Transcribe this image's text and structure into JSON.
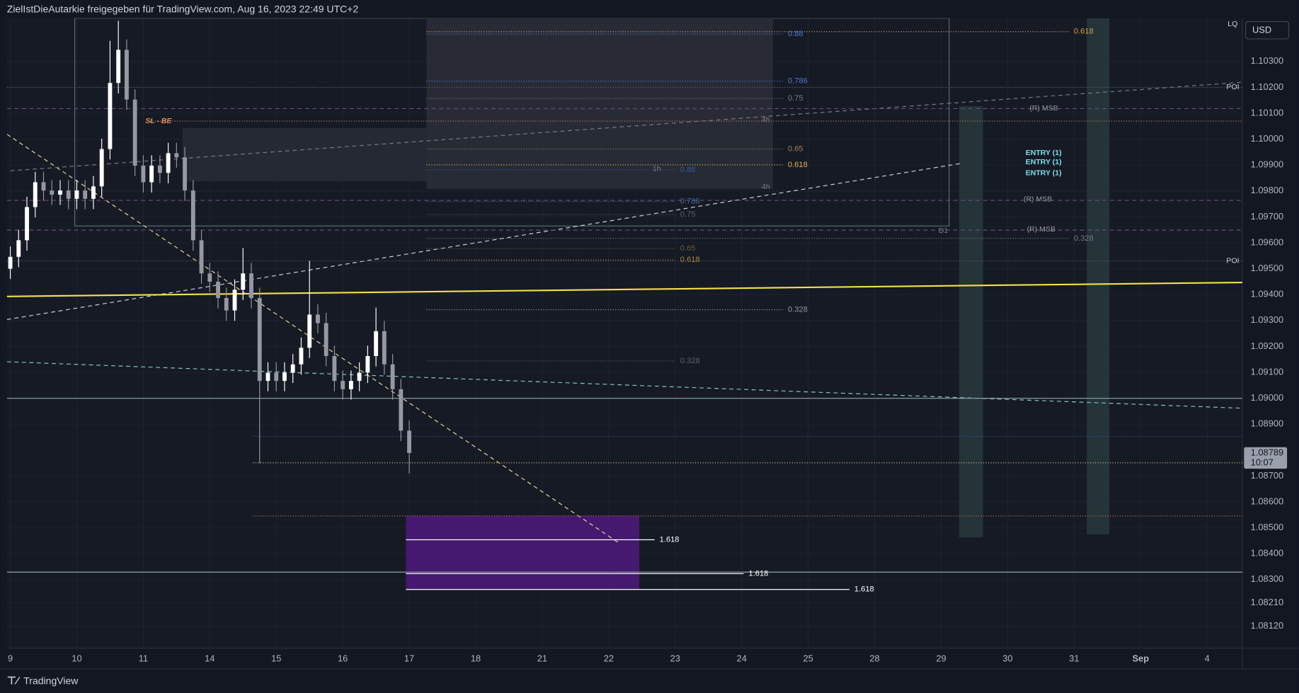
{
  "chart_data": {
    "type": "candlestick",
    "header": "ZielIstDieAutarkie freigegeben für TradingView.com, Aug 16, 2023 22:49 UTC+2",
    "currency": "USD",
    "brand": "TradingView",
    "last_price": 1.08789,
    "countdown": "10:07",
    "up_color": "#ffffff",
    "down_color": "#9598a1",
    "grid": true,
    "xlim": [
      -0.05,
      18.53
    ],
    "ylim": [
      1.08035,
      1.10467
    ],
    "xticks": [
      {
        "value": 0,
        "label": "9"
      },
      {
        "value": 1,
        "label": "10"
      },
      {
        "value": 2,
        "label": "11"
      },
      {
        "value": 3,
        "label": "14"
      },
      {
        "value": 4,
        "label": "15"
      },
      {
        "value": 5,
        "label": "16"
      },
      {
        "value": 6,
        "label": "17"
      },
      {
        "value": 7,
        "label": "18"
      },
      {
        "value": 8,
        "label": "21"
      },
      {
        "value": 9,
        "label": "22"
      },
      {
        "value": 10,
        "label": "23"
      },
      {
        "value": 11,
        "label": "24"
      },
      {
        "value": 12,
        "label": "25"
      },
      {
        "value": 13,
        "label": "28"
      },
      {
        "value": 14,
        "label": "29"
      },
      {
        "value": 15,
        "label": "30"
      },
      {
        "value": 16,
        "label": "31"
      },
      {
        "value": 17,
        "label": "Sep"
      },
      {
        "value": 18,
        "label": "4"
      }
    ],
    "yticks": [
      {
        "value": 1.0812,
        "label": "1.08120"
      },
      {
        "value": 1.0821,
        "label": "1.08210"
      },
      {
        "value": 1.083,
        "label": "1.08300"
      },
      {
        "value": 1.084,
        "label": "1.08400"
      },
      {
        "value": 1.085,
        "label": "1.08500"
      },
      {
        "value": 1.086,
        "label": "1.08600"
      },
      {
        "value": 1.087,
        "label": "1.08700"
      },
      {
        "value": 1.089,
        "label": "1.08900"
      },
      {
        "value": 1.09,
        "label": "1.09000"
      },
      {
        "value": 1.091,
        "label": "1.09100"
      },
      {
        "value": 1.092,
        "label": "1.09200"
      },
      {
        "value": 1.093,
        "label": "1.09300"
      },
      {
        "value": 1.094,
        "label": "1.09400"
      },
      {
        "value": 1.095,
        "label": "1.09500"
      },
      {
        "value": 1.096,
        "label": "1.09600"
      },
      {
        "value": 1.097,
        "label": "1.09700"
      },
      {
        "value": 1.098,
        "label": "1.09800"
      },
      {
        "value": 1.099,
        "label": "1.09900"
      },
      {
        "value": 1.1,
        "label": "1.10000"
      },
      {
        "value": 1.101,
        "label": "1.10100"
      },
      {
        "value": 1.102,
        "label": "1.10200"
      },
      {
        "value": 1.103,
        "label": "1.10300"
      }
    ],
    "x": [
      0,
      0.125,
      0.25,
      0.375,
      0.5,
      0.625,
      0.75,
      0.875,
      1,
      1.125,
      1.25,
      1.375,
      1.5,
      1.625,
      1.75,
      1.875,
      2,
      2.125,
      2.25,
      2.375,
      2.5,
      2.625,
      2.75,
      2.875,
      3,
      3.125,
      3.25,
      3.375,
      3.5,
      3.625,
      3.75,
      3.875,
      4,
      4.125,
      4.25,
      4.375,
      4.5,
      4.625,
      4.75,
      4.875,
      5,
      5.125,
      5.25,
      5.375,
      5.5,
      5.625,
      5.75,
      5.875,
      6
    ],
    "open": [
      1.095,
      1.09546,
      1.0961,
      1.09738,
      1.09834,
      1.09802,
      1.09786,
      1.09802,
      1.0977,
      1.09802,
      1.0977,
      1.09818,
      1.09962,
      1.10217,
      1.10345,
      1.10153,
      1.09898,
      1.09834,
      1.09898,
      1.0987,
      1.09946,
      1.0993,
      1.09802,
      1.0961,
      1.09482,
      1.0945,
      1.09387,
      1.09339,
      1.09419,
      1.09482,
      1.09387,
      1.09067,
      1.09099,
      1.09067,
      1.09099,
      1.09131,
      1.09195,
      1.09323,
      1.0929,
      1.09163,
      1.09067,
      1.09035,
      1.09067,
      1.09099,
      1.09163,
      1.09259,
      1.09131,
      1.09035,
      1.08875
    ],
    "high": [
      1.09586,
      1.0965,
      1.09778,
      1.09874,
      1.09874,
      1.09842,
      1.09842,
      1.09842,
      1.09842,
      1.09842,
      1.09858,
      1.10002,
      1.1038,
      1.10457,
      1.10385,
      1.10193,
      1.09938,
      1.09938,
      1.09938,
      1.09986,
      1.09986,
      1.0997,
      1.09842,
      1.0965,
      1.09522,
      1.0949,
      1.09427,
      1.09459,
      1.0958,
      1.09522,
      1.09427,
      1.09139,
      1.09139,
      1.09139,
      1.09171,
      1.09235,
      1.0953,
      1.09363,
      1.0933,
      1.09203,
      1.09107,
      1.09107,
      1.09139,
      1.09203,
      1.0935,
      1.09299,
      1.09171,
      1.09075,
      1.08915
    ],
    "low": [
      1.0946,
      1.09506,
      1.0957,
      1.09698,
      1.09762,
      1.09746,
      1.09746,
      1.0973,
      1.0973,
      1.0973,
      1.0973,
      1.09778,
      1.09922,
      1.10177,
      1.10113,
      1.09858,
      1.09794,
      1.09794,
      1.0983,
      1.0983,
      1.0989,
      1.09762,
      1.0957,
      1.09442,
      1.0941,
      1.09347,
      1.09299,
      1.09299,
      1.09379,
      1.09347,
      1.0875,
      1.09027,
      1.09027,
      1.09027,
      1.09059,
      1.09091,
      1.09155,
      1.0925,
      1.09123,
      1.09027,
      1.08995,
      1.08995,
      1.09027,
      1.09059,
      1.09123,
      1.09091,
      1.08995,
      1.08835,
      1.0871
    ],
    "close": [
      1.09546,
      1.0961,
      1.09738,
      1.09834,
      1.09802,
      1.09786,
      1.09802,
      1.0977,
      1.09802,
      1.0977,
      1.09818,
      1.09962,
      1.10217,
      1.10345,
      1.10153,
      1.09898,
      1.09834,
      1.09898,
      1.0987,
      1.09946,
      1.0993,
      1.09802,
      1.0961,
      1.09482,
      1.0945,
      1.09387,
      1.09339,
      1.09419,
      1.09482,
      1.09387,
      1.09067,
      1.09099,
      1.09067,
      1.09099,
      1.09131,
      1.09195,
      1.09323,
      1.0929,
      1.09163,
      1.09067,
      1.09035,
      1.09067,
      1.09099,
      1.09163,
      1.09259,
      1.09131,
      1.09035,
      1.08875,
      1.08789
    ],
    "zones": [
      {
        "x1": 0.97,
        "x2": 14.12,
        "p1": 1.10467,
        "p2": 1.09665,
        "color": "#5d6b73",
        "style": "outline"
      },
      {
        "x1": 6.26,
        "x2": 11.47,
        "p1": 1.10467,
        "p2": 1.09808,
        "color": "#2a2e39",
        "style": "fill"
      },
      {
        "x1": 2.59,
        "x2": 11.47,
        "p1": 1.10043,
        "p2": 1.09837,
        "color": "#262b36",
        "style": "fill"
      },
      {
        "x1": 5.95,
        "x2": 9.46,
        "p1": 1.08546,
        "p2": 1.08262,
        "color": "#4a1a78",
        "style": "fill"
      },
      {
        "x1": 14.27,
        "x2": 14.63,
        "p1": 1.10128,
        "p2": 1.08463,
        "color": "#26373c",
        "style": "fill"
      },
      {
        "x1": 16.19,
        "x2": 16.53,
        "p1": 1.10467,
        "p2": 1.08475,
        "color": "#26373c",
        "style": "fill"
      }
    ],
    "lines": [
      {
        "x1": -0.05,
        "p1": 1.10019,
        "x2": 9.14,
        "p2": 1.08444,
        "color": "#e8d9a0",
        "dash": "dashed"
      },
      {
        "x1": -0.05,
        "p1": 1.09304,
        "x2": 14.31,
        "p2": 1.09907,
        "color": "#d1d4dc",
        "dash": "dashed"
      },
      {
        "x1": 0,
        "p1": 1.09878,
        "x2": 18.53,
        "p2": 1.1022,
        "color": "#787b86",
        "dash": "dashed"
      },
      {
        "x1": -0.05,
        "p1": 1.09141,
        "x2": 18.49,
        "p2": 1.08962,
        "color": "#80cbc4",
        "dash": "dashed"
      },
      {
        "x1": -0.05,
        "p1": 1.09,
        "x2": 18.53,
        "p2": 1.09,
        "color": "#8fa3a8",
        "dash": "solid"
      },
      {
        "x1": -0.05,
        "p1": 1.08329,
        "x2": 18.53,
        "p2": 1.08329,
        "color": "#8fa3a8",
        "dash": "solid"
      },
      {
        "x1": 3.65,
        "x2": 18.53,
        "p1": 1.08853,
        "p2": 1.08853,
        "color": "#3f51b5",
        "dash": "dotted"
      },
      {
        "x1": 3.65,
        "x2": 18.53,
        "p1": 1.08751,
        "p2": 1.08751,
        "color": "#e0d080",
        "dash": "dotted"
      },
      {
        "x1": 3.65,
        "x2": 18.53,
        "p1": 1.08546,
        "p2": 1.08546,
        "color": "#c07840",
        "dash": "dotted"
      },
      {
        "x1": -0.05,
        "x2": 18.53,
        "p1": 1.102,
        "p2": 1.102,
        "color": "#5d606b",
        "dash": "dotted"
      },
      {
        "x1": -0.05,
        "x2": 18.53,
        "p1": 1.0953,
        "p2": 1.0953,
        "color": "#5d606b",
        "dash": "dotted"
      },
      {
        "x1": -0.05,
        "x2": 18.53,
        "p1": 1.10118,
        "p2": 1.10118,
        "color": "#6a4a80",
        "dash": "dashed"
      },
      {
        "x1": -0.05,
        "x2": 18.53,
        "p1": 1.09764,
        "p2": 1.09764,
        "color": "#6a4a80",
        "dash": "dashed"
      },
      {
        "x1": -0.05,
        "x2": 18.53,
        "p1": 1.09649,
        "p2": 1.09649,
        "color": "#6a4a80",
        "dash": "dashed"
      },
      {
        "x1": 2.1,
        "x2": 18.53,
        "p1": 1.1007,
        "p2": 1.1007,
        "color": "#c08850",
        "dash": "dotted"
      },
      {
        "x1": -0.05,
        "x2": 18.53,
        "p1": 1.09393,
        "p2": 1.09447,
        "color": "#f5e04a",
        "dash": "solid"
      }
    ],
    "levels": [
      {
        "label": "0.618",
        "price": 1.10415,
        "from": 6.26,
        "to": 15.92,
        "color": "#d4a04a"
      },
      {
        "label": "0.88",
        "price": 1.10406,
        "from": 6.26,
        "to": 11.62,
        "color": "#4a7bd4"
      },
      {
        "label": "0.786",
        "price": 1.10224,
        "from": 6.26,
        "to": 11.62,
        "color": "#4a7bd4"
      },
      {
        "label": "0.75",
        "price": 1.10157,
        "from": 6.26,
        "to": 11.62,
        "color": "#787b86"
      },
      {
        "label": "0.65",
        "price": 1.09962,
        "from": 6.26,
        "to": 11.62,
        "color": "#a08050"
      },
      {
        "label": "0.618",
        "price": 1.09901,
        "from": 6.26,
        "to": 11.62,
        "color": "#e0b050"
      },
      {
        "label": "0.88",
        "price": 1.09882,
        "from": 6.26,
        "to": 10.0,
        "color": "#3a5a9a"
      },
      {
        "label": "0.786",
        "price": 1.0976,
        "from": 6.26,
        "to": 10.0,
        "color": "#4a6aa0"
      },
      {
        "label": "0.75",
        "price": 1.09709,
        "from": 6.26,
        "to": 10.0,
        "color": "#5d606b"
      },
      {
        "label": "0.65",
        "price": 1.09578,
        "from": 6.26,
        "to": 10.0,
        "color": "#6a5a40"
      },
      {
        "label": "0.618",
        "price": 1.09534,
        "from": 6.26,
        "to": 10.0,
        "color": "#b08540"
      },
      {
        "label": "0.328",
        "price": 1.09342,
        "from": 6.26,
        "to": 11.62,
        "color": "#9598a1"
      },
      {
        "label": "0.328",
        "price": 1.09144,
        "from": 6.26,
        "to": 10.0,
        "color": "#5d606b"
      },
      {
        "label": "0.328",
        "price": 1.09617,
        "from": 6.26,
        "to": 15.92,
        "color": "#787b86"
      },
      {
        "label": "1.618",
        "price": 1.08454,
        "from": 5.95,
        "to": 9.69,
        "color": "#ffffff"
      },
      {
        "label": "1.618",
        "price": 1.08323,
        "from": 5.95,
        "to": 11.03,
        "color": "#ffffff"
      },
      {
        "label": "1.618",
        "price": 1.08262,
        "from": 5.95,
        "to": 12.62,
        "color": "#ffffff"
      }
    ],
    "annotations": [
      {
        "text": "SL - BE",
        "price": 1.1007,
        "x": 2.03,
        "color": "#e0945a"
      },
      {
        "text": "(R) MSB",
        "price": 1.10118,
        "x": 15.33,
        "color": "#9598a1"
      },
      {
        "text": "(R) MSB",
        "price": 1.09767,
        "x": 15.24,
        "color": "#9598a1"
      },
      {
        "text": "(R) MSB",
        "price": 1.09652,
        "x": 15.29,
        "color": "#9598a1"
      },
      {
        "text": "ENTRY (1)",
        "price": 1.09946,
        "x": 15.27,
        "color": "#80deea"
      },
      {
        "text": "ENTRY (1)",
        "price": 1.09911,
        "x": 15.27,
        "color": "#80deea"
      },
      {
        "text": "ENTRY (1)",
        "price": 1.09869,
        "x": 15.27,
        "color": "#80deea"
      },
      {
        "text": "POI",
        "price": 1.102,
        "x": 18.29,
        "color": "#d1d4dc"
      },
      {
        "text": "POI",
        "price": 1.0953,
        "x": 18.29,
        "color": "#d1d4dc"
      },
      {
        "text": "LQ",
        "price": 1.10444,
        "x": 18.31,
        "color": "#d1d4dc"
      },
      {
        "text": "1h",
        "price": 1.09885,
        "x": 9.66,
        "color": "#787b86"
      },
      {
        "text": "4h",
        "price": 1.10074,
        "x": 11.3,
        "color": "#787b86"
      },
      {
        "text": "4h",
        "price": 1.09815,
        "x": 11.3,
        "color": "#787b86"
      },
      {
        "text": "D1",
        "price": 1.09646,
        "x": 13.96,
        "color": "#787b86"
      }
    ]
  }
}
